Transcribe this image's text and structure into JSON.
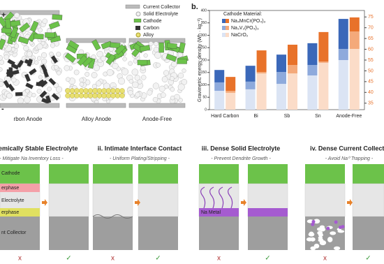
{
  "panel_a": {
    "sign_plus": "+",
    "sign_minus": "-",
    "labels": [
      "rbon Anode",
      "Alloy Anode",
      "Anode-Free"
    ],
    "legend": [
      "Current Collector",
      "Solid Electrolyte",
      "Cathode",
      "Carbon",
      "Alloy"
    ]
  },
  "chart_data": {
    "type": "bar",
    "panel_label": "b.",
    "y_label": "Gravimetric energy density (Wh · kg⁻¹)",
    "legend_title": "Cathode Material:",
    "categories": [
      "Hard Carbon",
      "Bi",
      "Sb",
      "Sn",
      "Anode-Free"
    ],
    "series": [
      {
        "name": "NaCrO₂",
        "color": "#dbe4f4",
        "stack": 0,
        "values": [
          76,
          82,
          104,
          138,
          200
        ]
      },
      {
        "name": "Na₃V₂(PO₄)₃",
        "color": "#8eaadc",
        "stack": 0,
        "values": [
          34,
          31,
          48,
          42,
          45
        ]
      },
      {
        "name": "Na₄MnCr(PO₄)₃",
        "color": "#3b68b9",
        "stack": 0,
        "values": [
          50,
          64,
          70,
          88,
          121
        ]
      },
      {
        "name": "NaCrO₂",
        "color": "#fbdcc8",
        "stack": 1,
        "values": [
          68,
          146,
          146,
          189,
          245
        ]
      },
      {
        "name": "Na₃V₂(PO₄)₃",
        "color": "#f4a97a",
        "stack": 1,
        "values": [
          8,
          6,
          34,
          5,
          70
        ]
      },
      {
        "name": "Na₄MnCr(PO₄)₃",
        "color": "#e8722a",
        "stack": 1,
        "values": [
          56,
          87,
          82,
          119,
          57
        ]
      }
    ],
    "ylim": [
      0,
      400
    ],
    "yticks": [
      0,
      50,
      100,
      150,
      200,
      250,
      300,
      350,
      400
    ],
    "y2lim": [
      32,
      78
    ],
    "y2ticks": [
      35,
      40,
      45,
      50,
      55,
      60,
      65,
      70,
      75
    ]
  },
  "panel_c": {
    "titles": [
      "rochemically Stable Electrolyte",
      "ii. Intimate Interface Contact",
      "iii. Dense Solid Electrolyte",
      "iv. Dense Current Collecto"
    ],
    "subtitles": [
      "- Mitigate Na Inventory Loss -",
      "- Uniform Plating/Stripping -",
      "- Prevent Dendrite Growth -",
      "- Avoid Na⁰ Trapping -"
    ],
    "layers": [
      "Cathode",
      "erphase",
      "Electrolyte",
      "erphase",
      "nt Collector"
    ],
    "na_metal": "Na Metal",
    "bad": "x",
    "good": "✓"
  }
}
